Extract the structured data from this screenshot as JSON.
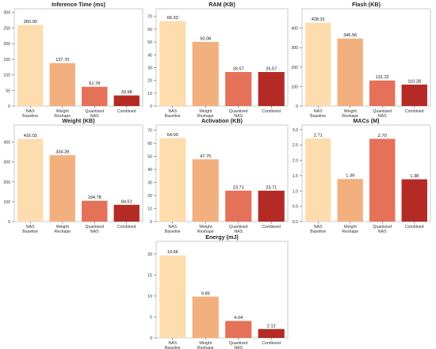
{
  "palette": [
    "#fddcae",
    "#f3b07f",
    "#e57159",
    "#b42b26"
  ],
  "chart_data": [
    {
      "type": "bar",
      "title": "Inference Time (ms)",
      "categories": [
        "NAS\nBaseline",
        "Weight\nReshape",
        "Quantized\nNAS",
        "Combined"
      ],
      "values": [
        260.0,
        137.7,
        61.78,
        33.98
      ],
      "value_labels": [
        "260.00",
        "137.70",
        "61.78",
        "33.98"
      ],
      "yticks": [
        0,
        50,
        100,
        150,
        200,
        250,
        300
      ],
      "ytick_labels": [
        "0",
        "50",
        "100",
        "150",
        "200",
        "250",
        "300"
      ],
      "ylim": [
        0,
        312
      ],
      "grid": false,
      "xlabel": "",
      "ylabel": ""
    },
    {
      "type": "bar",
      "title": "RAM (KB)",
      "categories": [
        "NAS\nBaseline",
        "Weight\nReshape",
        "Quantized\nNAS",
        "Combined"
      ],
      "values": [
        66.33,
        50.08,
        26.57,
        26.57
      ],
      "value_labels": [
        "66.33",
        "50.08",
        "26.57",
        "26.57"
      ],
      "yticks": [
        0,
        10,
        20,
        30,
        40,
        50,
        60,
        70
      ],
      "ytick_labels": [
        "0",
        "10",
        "20",
        "30",
        "40",
        "50",
        "60",
        "70"
      ],
      "ylim": [
        0,
        76
      ],
      "grid": false,
      "xlabel": "",
      "ylabel": ""
    },
    {
      "type": "bar",
      "title": "Flash (KB)",
      "categories": [
        "NAS\nBaseline",
        "Weight\nReshape",
        "Quantized\nNAS",
        "Combined"
      ],
      "values": [
        428.31,
        346.56,
        131.22,
        110.28
      ],
      "value_labels": [
        "428.31",
        "346.56",
        "131.22",
        "110.28"
      ],
      "yticks": [
        0,
        100,
        200,
        300,
        400
      ],
      "ytick_labels": [
        "0",
        "100",
        "200",
        "300",
        "400"
      ],
      "ylim": [
        0,
        500
      ],
      "grid": false,
      "xlabel": "",
      "ylabel": ""
    },
    {
      "type": "bar",
      "title": "Weight (KB)",
      "categories": [
        "NAS\nBaseline",
        "Weight\nReshape",
        "Quantized\nNAS",
        "Combined"
      ],
      "values": [
        416.03,
        334.28,
        104.78,
        84.61
      ],
      "value_labels": [
        "416.03",
        "334.28",
        "104.78",
        "84.61"
      ],
      "yticks": [
        0,
        100,
        200,
        300,
        400
      ],
      "ytick_labels": [
        "0",
        "100",
        "200",
        "300",
        "400"
      ],
      "ylim": [
        0,
        486
      ],
      "grid": false,
      "xlabel": "",
      "ylabel": ""
    },
    {
      "type": "bar",
      "title": "Activation (KB)",
      "categories": [
        "NAS\nBaseline",
        "Weight\nReshape",
        "Quantized\nNAS",
        "Combined"
      ],
      "values": [
        64.0,
        47.75,
        23.71,
        23.71
      ],
      "value_labels": [
        "64.00",
        "47.75",
        "23.71",
        "23.71"
      ],
      "yticks": [
        0,
        10,
        20,
        30,
        40,
        50,
        60,
        70
      ],
      "ytick_labels": [
        "0",
        "10",
        "20",
        "30",
        "40",
        "50",
        "60",
        "70"
      ],
      "ylim": [
        0,
        74
      ],
      "grid": false,
      "xlabel": "",
      "ylabel": ""
    },
    {
      "type": "bar",
      "title": "MACs (M)",
      "categories": [
        "NAS\nBaseline",
        "Weight\nReshape",
        "Quantized\nNAS",
        "Combined"
      ],
      "values": [
        2.71,
        1.39,
        2.7,
        1.38
      ],
      "value_labels": [
        "2.71",
        "1.39",
        "2.70",
        "1.38"
      ],
      "yticks": [
        0,
        0.5,
        1.0,
        1.5,
        2.0,
        2.5,
        3.0
      ],
      "ytick_labels": [
        "0.0",
        "0.5",
        "1.0",
        "1.5",
        "2.0",
        "2.5",
        "3.0"
      ],
      "ylim": [
        0,
        3.15
      ],
      "grid": false,
      "xlabel": "",
      "ylabel": ""
    },
    {
      "type": "bar",
      "title": "Energy (mJ)",
      "categories": [
        "NAS\nBaseline",
        "Weight\nReshape",
        "Quantized\nNAS",
        "Combined"
      ],
      "values": [
        19.66,
        9.85,
        4.04,
        2.12
      ],
      "value_labels": [
        "19.66",
        "9.85",
        "4.04",
        "2.12"
      ],
      "yticks": [
        0,
        5,
        10,
        15,
        20
      ],
      "ytick_labels": [
        "0",
        "5",
        "10",
        "15",
        "20"
      ],
      "ylim": [
        0,
        23
      ],
      "grid": false,
      "xlabel": "",
      "ylabel": ""
    }
  ]
}
